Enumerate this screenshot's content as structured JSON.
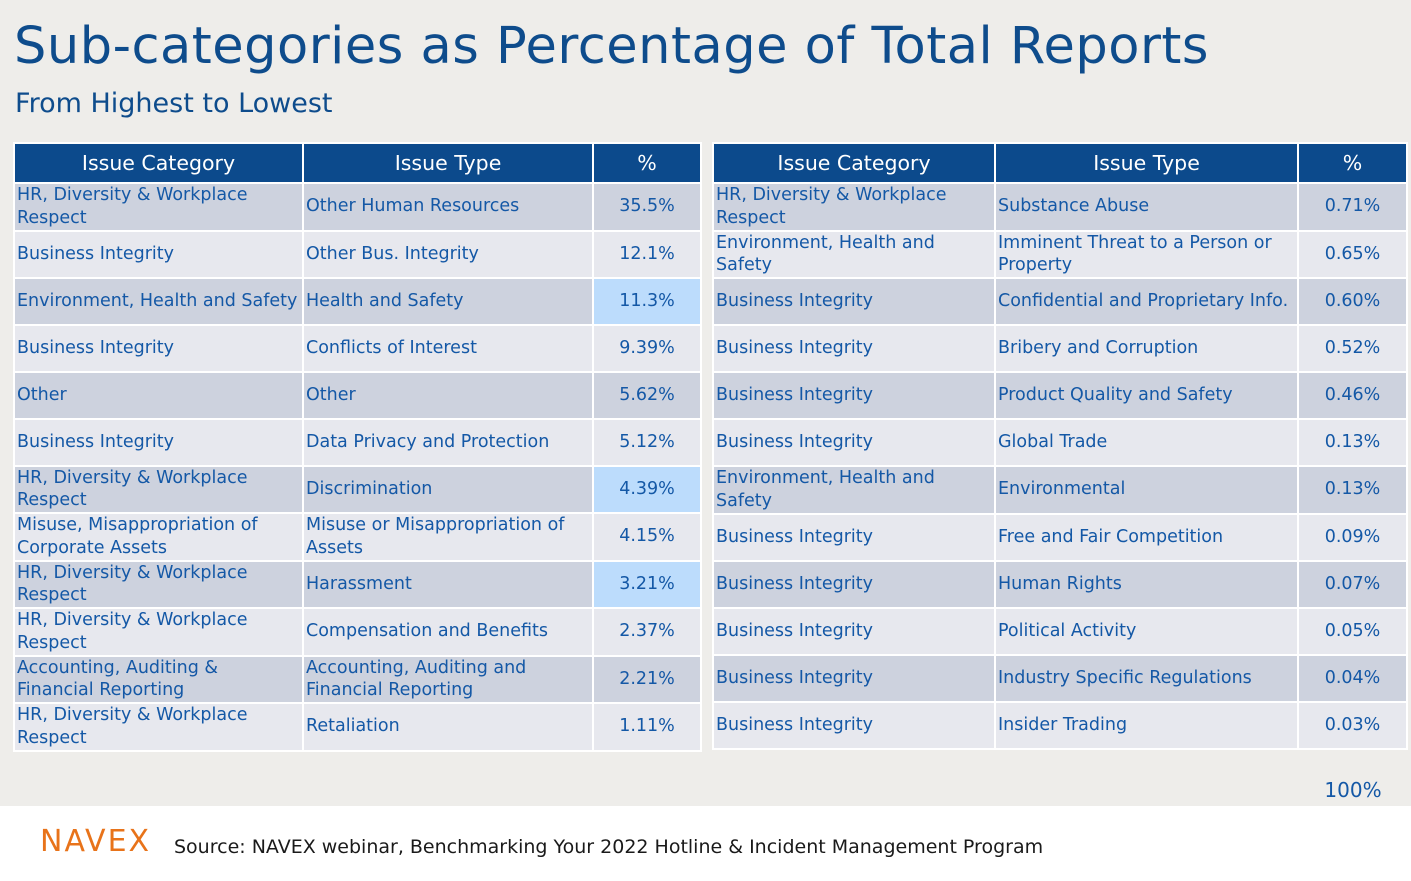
{
  "title": "Sub-categories as Percentage of Total Reports",
  "subtitle": "From Highest to Lowest",
  "headers": {
    "category": "Issue Category",
    "type": "Issue Type",
    "pct": "%"
  },
  "highlight_color": "#bcdcfc",
  "header_color": "#0c4a8c",
  "left_rows": [
    {
      "category": "HR, Diversity & Workplace Respect",
      "type": "Other Human Resources",
      "pct": "35.5%",
      "highlight": false
    },
    {
      "category": "Business Integrity",
      "type": "Other Bus. Integrity",
      "pct": "12.1%",
      "highlight": false
    },
    {
      "category": "Environment, Health and Safety",
      "type": "Health and Safety",
      "pct": "11.3%",
      "highlight": true
    },
    {
      "category": "Business Integrity",
      "type": "Conflicts of Interest",
      "pct": "9.39%",
      "highlight": false
    },
    {
      "category": "Other",
      "type": "Other",
      "pct": "5.62%",
      "highlight": false
    },
    {
      "category": "Business Integrity",
      "type": "Data Privacy and Protection",
      "pct": "5.12%",
      "highlight": false
    },
    {
      "category": "HR, Diversity & Workplace Respect",
      "type": "Discrimination",
      "pct": "4.39%",
      "highlight": true
    },
    {
      "category": "Misuse, Misappropriation of Corporate Assets",
      "type": "Misuse or Misappropriation of Assets",
      "pct": "4.15%",
      "highlight": false
    },
    {
      "category": "HR, Diversity & Workplace Respect",
      "type": "Harassment",
      "pct": "3.21%",
      "highlight": true
    },
    {
      "category": "HR, Diversity & Workplace Respect",
      "type": "Compensation and Benefits",
      "pct": "2.37%",
      "highlight": false
    },
    {
      "category": "Accounting, Auditing & Financial Reporting",
      "type": "Accounting, Auditing and Financial Reporting",
      "pct": "2.21%",
      "highlight": false
    },
    {
      "category": "HR, Diversity & Workplace Respect",
      "type": "Retaliation",
      "pct": "1.11%",
      "highlight": false
    }
  ],
  "right_rows": [
    {
      "category": "HR, Diversity & Workplace Respect",
      "type": "Substance Abuse",
      "pct": "0.71%",
      "highlight": false
    },
    {
      "category": "Environment, Health and Safety",
      "type": "Imminent Threat to a Person or Property",
      "pct": "0.65%",
      "highlight": false
    },
    {
      "category": "Business Integrity",
      "type": "Confidential and Proprietary Info.",
      "pct": "0.60%",
      "highlight": false
    },
    {
      "category": "Business Integrity",
      "type": "Bribery and Corruption",
      "pct": "0.52%",
      "highlight": false
    },
    {
      "category": "Business Integrity",
      "type": "Product Quality and Safety",
      "pct": "0.46%",
      "highlight": false
    },
    {
      "category": "Business Integrity",
      "type": "Global Trade",
      "pct": "0.13%",
      "highlight": false
    },
    {
      "category": "Environment, Health and Safety",
      "type": "Environmental",
      "pct": "0.13%",
      "highlight": false
    },
    {
      "category": "Business Integrity",
      "type": "Free and Fair Competition",
      "pct": "0.09%",
      "highlight": false
    },
    {
      "category": "Business Integrity",
      "type": "Human Rights",
      "pct": "0.07%",
      "highlight": false
    },
    {
      "category": "Business Integrity",
      "type": "Political Activity",
      "pct": "0.05%",
      "highlight": false
    },
    {
      "category": "Business Integrity",
      "type": "Industry Specific Regulations",
      "pct": "0.04%",
      "highlight": false
    },
    {
      "category": "Business Integrity",
      "type": "Insider Trading",
      "pct": "0.03%",
      "highlight": false
    }
  ],
  "total": "100%",
  "logo_text": "NAVEX",
  "source": "Source: NAVEX webinar, Benchmarking Your 2022 Hotline & Incident Management Program"
}
